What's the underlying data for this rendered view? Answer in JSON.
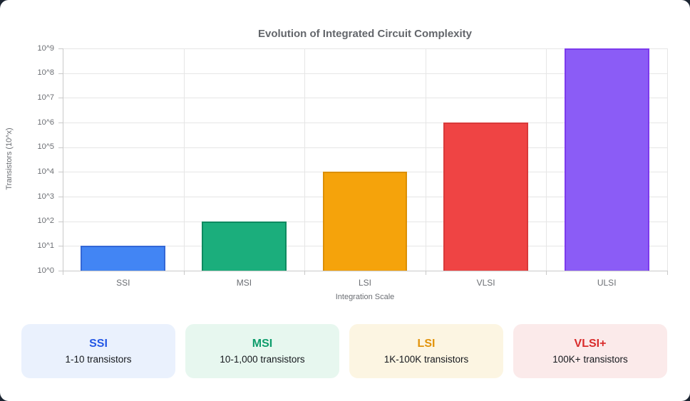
{
  "page": {
    "background_color": "#1B2431",
    "panel_color": "#FFFFFF"
  },
  "chart_data": {
    "type": "bar",
    "title": "Evolution of Integrated Circuit Complexity",
    "xlabel": "Integration Scale",
    "ylabel": "Transistors (10^x)",
    "categories": [
      "SSI",
      "MSI",
      "LSI",
      "VLSI",
      "ULSI"
    ],
    "values_exponent": [
      1,
      2,
      4,
      6,
      9
    ],
    "values_transistors": [
      10,
      100,
      10000,
      1000000,
      1000000000
    ],
    "bar_fill_colors": [
      "#4285F4",
      "#1BAE7C",
      "#F5A30B",
      "#EF4444",
      "#8B5CF6"
    ],
    "bar_border_colors": [
      "#3367D6",
      "#0E8A60",
      "#DB8F05",
      "#D83A3A",
      "#7C3AED"
    ],
    "y_tick_labels": [
      "10^0",
      "10^1",
      "10^2",
      "10^3",
      "10^4",
      "10^5",
      "10^6",
      "10^7",
      "10^8",
      "10^9"
    ],
    "ylim_exponent": [
      0,
      9
    ],
    "grid": true,
    "legend": false,
    "title_color": "#63666B",
    "axis_text_color": "#6B6E73",
    "gridline_color": "#E6E6E6"
  },
  "cards": [
    {
      "title": "SSI",
      "subtitle": "1-10 transistors",
      "bg": "#EAF1FD",
      "accent": "#2457E5"
    },
    {
      "title": "MSI",
      "subtitle": "10-1,000 transistors",
      "bg": "#E7F7EF",
      "accent": "#0E9D6C"
    },
    {
      "title": "LSI",
      "subtitle": "1K-100K transistors",
      "bg": "#FCF5E2",
      "accent": "#E2930B"
    },
    {
      "title": "VLSI+",
      "subtitle": "100K+ transistors",
      "bg": "#FBEAEA",
      "accent": "#D92B2B"
    }
  ]
}
